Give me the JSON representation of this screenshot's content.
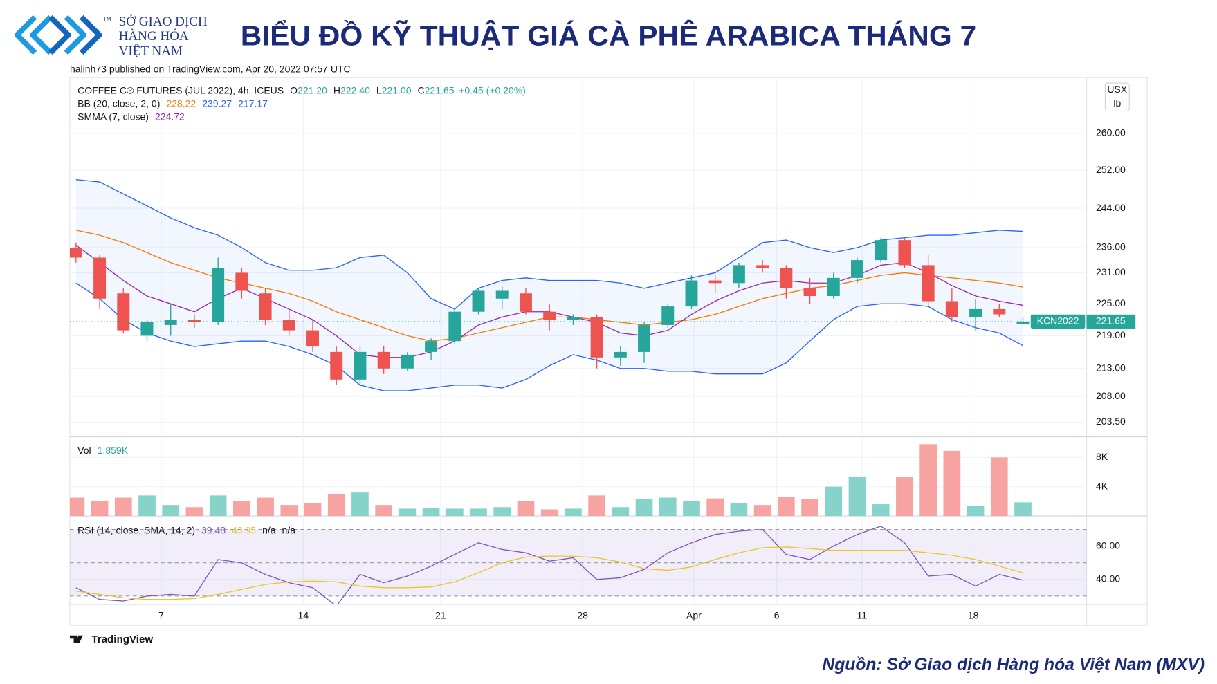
{
  "header": {
    "logo_lines": [
      "SỞ GIAO DỊCH",
      "HÀNG HÓA",
      "VIỆT NAM"
    ],
    "trademark": "TM",
    "title": "BIỂU ĐỒ KỸ THUẬT GIÁ CÀ PHÊ ARABICA THÁNG 7",
    "published": "halinh73 published on TradingView.com, Apr 20, 2022 07:57 UTC"
  },
  "footer": {
    "brand": "TradingView",
    "source": "Nguồn: Sở Giao dịch Hàng hóa Việt Nam (MXV)"
  },
  "chart_data": [
    {
      "type": "candlestick",
      "title": "COFFEE C® FUTURES (JUL 2022), 4h, ICEUS",
      "legend_keys": [
        "O",
        "H",
        "L",
        "C"
      ],
      "last_labels": [
        "221.20",
        "222.40",
        "221.00"
      ],
      "change": "+0.45 (+0.20%)",
      "symbol": "KCN2022",
      "currency": "USX",
      "unit": "lb",
      "log_scale": true,
      "grid": true,
      "up_color": "#26a69a",
      "down_color": "#ef5350",
      "open": [
        236,
        234,
        227,
        219,
        221,
        222,
        221.5,
        231,
        227,
        222,
        220,
        216,
        211,
        216,
        213,
        216,
        218,
        223.5,
        226,
        227,
        223.5,
        222,
        222.5,
        215,
        216,
        221,
        224.5,
        229.5,
        229,
        232.5,
        232,
        228,
        226.5,
        230,
        233.5,
        237.5,
        232.5,
        225.5,
        222.5,
        224,
        221.2
      ],
      "high": [
        237,
        234.5,
        228,
        222,
        225,
        223,
        234,
        232,
        228,
        224,
        222,
        217,
        217,
        217,
        216,
        218.5,
        224,
        228,
        228.5,
        228,
        225,
        223,
        223,
        217,
        221.5,
        225,
        230.5,
        230.5,
        233,
        233.5,
        232.5,
        230,
        231,
        234,
        238,
        238,
        234.5,
        228,
        226,
        225,
        222.4
      ],
      "low": [
        233,
        224,
        219.5,
        218,
        219,
        220.5,
        221,
        226,
        221,
        219,
        216,
        210,
        210,
        212,
        212.5,
        214.5,
        217.5,
        223,
        224,
        223,
        220,
        221,
        213,
        213.5,
        214,
        220.5,
        224,
        227,
        228,
        231,
        226,
        225,
        226,
        229,
        233,
        232,
        224.5,
        221.5,
        220,
        222.5,
        221
      ],
      "close": [
        234,
        226,
        220,
        221.5,
        222,
        221.5,
        232,
        227.5,
        222,
        220,
        217,
        211,
        216,
        213,
        215.5,
        218,
        223.5,
        227.5,
        227.5,
        223.5,
        222,
        222.5,
        215,
        216,
        221,
        224.5,
        229.5,
        229,
        232.5,
        232,
        228,
        226.5,
        230,
        233.5,
        237.5,
        232.5,
        225.5,
        222.5,
        224,
        223,
        221.65
      ],
      "overlays": [
        {
          "label": "BB (20, close, 2, 0)",
          "band_fill": "#2962ff",
          "series": [
            {
              "color": "#f57c00",
              "values": [
                239.5,
                238.5,
                237,
                235,
                233,
                231.5,
                230,
                229,
                228,
                227,
                225.5,
                223.5,
                222,
                220.5,
                219,
                218,
                218.5,
                219.5,
                220.5,
                221.5,
                222.5,
                222.5,
                222,
                221.5,
                221,
                221.5,
                222,
                223,
                224.5,
                226,
                227,
                228,
                228.5,
                229.5,
                230.5,
                231,
                230.5,
                230,
                229.5,
                229,
                228.22
              ]
            },
            {
              "color": "#2962ff",
              "values": [
                250,
                249.5,
                247,
                244.5,
                242,
                240,
                238.5,
                236,
                233,
                231.5,
                231.5,
                232,
                234,
                234.5,
                231,
                226,
                224,
                228,
                229.5,
                230,
                229.5,
                229.5,
                229.5,
                229,
                228,
                229,
                230,
                231,
                234,
                237,
                237.5,
                236,
                235,
                236,
                237.5,
                238,
                238.5,
                238.5,
                239,
                239.5,
                239.27
              ]
            },
            {
              "color": "#2962ff",
              "values": [
                229,
                226,
                222,
                219.5,
                218,
                217,
                217.5,
                218,
                218,
                217,
                215.5,
                213.5,
                210,
                209,
                209,
                209.5,
                210,
                210,
                209.5,
                211,
                213.5,
                215.5,
                214.5,
                213,
                213,
                212.5,
                212.5,
                212,
                212,
                212,
                214,
                218,
                222,
                224.5,
                225,
                225,
                224.5,
                222,
                220.5,
                219.5,
                217.17
              ]
            }
          ]
        },
        {
          "label": "SMMA (7, close)",
          "series": [
            {
              "color": "#9c27b0",
              "values": [
                236.5,
                233,
                229.5,
                226.5,
                225,
                223.5,
                226,
                228,
                226,
                224,
                222,
                219,
                215.5,
                215,
                215,
                216,
                218,
                221,
                222.5,
                223.5,
                223.5,
                222.5,
                221.5,
                219.5,
                219,
                220,
                223,
                225.5,
                227.5,
                229,
                229.5,
                229,
                229,
                230.5,
                232.5,
                233,
                231,
                228.5,
                226.5,
                225.5,
                224.72
              ]
            }
          ]
        }
      ],
      "xlim": [
        -0.26,
        42.69
      ],
      "ylim": [
        201,
        272.6
      ],
      "yticks": [
        {
          "value": 203.5,
          "label": "203.50"
        },
        {
          "value": 208,
          "label": "208.00"
        },
        {
          "value": 213,
          "label": "213.00"
        },
        {
          "value": 219,
          "label": "219.00"
        },
        {
          "value": 225,
          "label": "225.00"
        },
        {
          "value": 231,
          "label": "231.00"
        },
        {
          "value": 236,
          "label": "236.00"
        },
        {
          "value": 244,
          "label": "244.00"
        },
        {
          "value": 252,
          "label": "252.00"
        },
        {
          "value": 260,
          "label": "260.00"
        }
      ]
    },
    {
      "type": "bar",
      "title": "Vol",
      "value_label": "1.859K",
      "up_color": "#86d3ca",
      "down_color": "#f6a3a1",
      "values": [
        2500,
        2000,
        2500,
        2800,
        1500,
        1200,
        2800,
        2000,
        2500,
        1500,
        1700,
        3000,
        3200,
        1500,
        1000,
        1100,
        1000,
        1000,
        1200,
        2000,
        900,
        1000,
        2800,
        1200,
        2300,
        2500,
        2000,
        2400,
        1800,
        1500,
        2600,
        2300,
        4000,
        5400,
        1600,
        5300,
        9800,
        8900,
        1400,
        8000,
        1859
      ],
      "xlim": [
        -0.26,
        42.69
      ],
      "ylim": [
        0,
        10600
      ],
      "yticks": [
        {
          "value": 4000,
          "label": "4K"
        },
        {
          "value": 8000,
          "label": "8K"
        }
      ]
    },
    {
      "type": "line",
      "title": "RSI (14, close, SMA, 14, 2)",
      "na_labels": [
        "n/a",
        "n/a"
      ],
      "band": [
        30,
        70
      ],
      "midline": 50,
      "band_color": "#7e57c2",
      "series": [
        {
          "color": "#7e57c2",
          "values": [
            35,
            28,
            27,
            30,
            31,
            30,
            52,
            50,
            43,
            38,
            35,
            24,
            43,
            38,
            42,
            48,
            55,
            62,
            58,
            56,
            51,
            53,
            40,
            41,
            46,
            56,
            62,
            67,
            69,
            70,
            55,
            52,
            60,
            67,
            72,
            62,
            42,
            43,
            36,
            43,
            39.48
          ]
        },
        {
          "color": "#e8c630",
          "values": [
            33,
            31,
            29,
            28,
            28,
            28.5,
            31,
            34,
            37,
            38.5,
            39,
            38.5,
            36,
            35,
            35,
            35.5,
            38.5,
            44,
            50,
            53.5,
            54,
            54,
            53,
            50.5,
            46.5,
            45.5,
            47.5,
            52,
            56,
            59,
            59.5,
            58.5,
            57.5,
            57.5,
            57.5,
            57.5,
            56,
            54.5,
            52,
            48,
            43.95
          ]
        }
      ],
      "xlim": [
        -0.26,
        42.69
      ],
      "ylim": [
        25,
        77.2
      ],
      "yticks": [
        {
          "value": 40,
          "label": "40.00"
        },
        {
          "value": 60,
          "label": "60.00"
        }
      ],
      "xticks": [
        {
          "value": 3.6,
          "label": "7"
        },
        {
          "value": 9.6,
          "label": "14"
        },
        {
          "value": 15.4,
          "label": "21"
        },
        {
          "value": 21.4,
          "label": "28"
        },
        {
          "value": 26.1,
          "label": "Apr"
        },
        {
          "value": 29.6,
          "label": "6"
        },
        {
          "value": 33.2,
          "label": "11"
        },
        {
          "value": 37.9,
          "label": "18"
        }
      ]
    }
  ]
}
